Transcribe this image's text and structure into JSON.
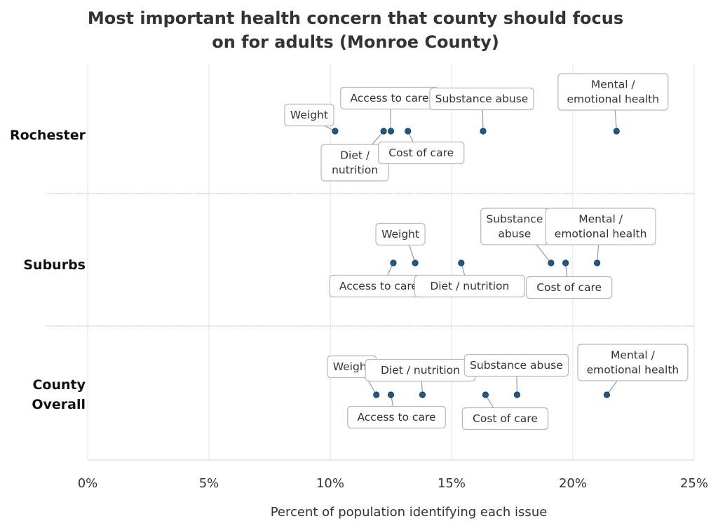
{
  "chart_data": {
    "type": "scatter",
    "title_lines": [
      "Most important health concern that county should focus",
      "on for adults (Monroe County)"
    ],
    "xlabel": "Percent of population identifying each issue",
    "xlim": [
      0,
      25
    ],
    "x_ticks": [
      0,
      5,
      10,
      15,
      20,
      25
    ],
    "x_tick_labels": [
      "0%",
      "5%",
      "10%",
      "15%",
      "20%",
      "25%"
    ],
    "grid": true,
    "point_color": "#1f5a85",
    "rows": [
      {
        "label_lines": [
          "Rochester"
        ],
        "points": [
          {
            "label_lines": [
              "Weight"
            ],
            "value": 10.2
          },
          {
            "label_lines": [
              "Diet /",
              "nutrition"
            ],
            "value": 12.2
          },
          {
            "label_lines": [
              "Access to care"
            ],
            "value": 12.5
          },
          {
            "label_lines": [
              "Cost of care"
            ],
            "value": 13.2
          },
          {
            "label_lines": [
              "Substance abuse"
            ],
            "value": 16.3
          },
          {
            "label_lines": [
              "Mental /",
              "emotional health"
            ],
            "value": 21.8
          }
        ]
      },
      {
        "label_lines": [
          "Suburbs"
        ],
        "points": [
          {
            "label_lines": [
              "Access to care"
            ],
            "value": 12.6
          },
          {
            "label_lines": [
              "Weight"
            ],
            "value": 13.5
          },
          {
            "label_lines": [
              "Diet / nutrition"
            ],
            "value": 15.4
          },
          {
            "label_lines": [
              "Substance",
              "abuse"
            ],
            "value": 19.1
          },
          {
            "label_lines": [
              "Cost of care"
            ],
            "value": 19.7
          },
          {
            "label_lines": [
              "Mental /",
              "emotional health"
            ],
            "value": 21.0
          }
        ]
      },
      {
        "label_lines": [
          "County",
          "Overall"
        ],
        "points": [
          {
            "label_lines": [
              "Weight"
            ],
            "value": 11.9
          },
          {
            "label_lines": [
              "Access to care"
            ],
            "value": 12.5
          },
          {
            "label_lines": [
              "Diet / nutrition"
            ],
            "value": 13.8
          },
          {
            "label_lines": [
              "Cost of care"
            ],
            "value": 16.4
          },
          {
            "label_lines": [
              "Substance abuse"
            ],
            "value": 17.7
          },
          {
            "label_lines": [
              "Mental /",
              "emotional health"
            ],
            "value": 21.4
          }
        ]
      }
    ]
  }
}
